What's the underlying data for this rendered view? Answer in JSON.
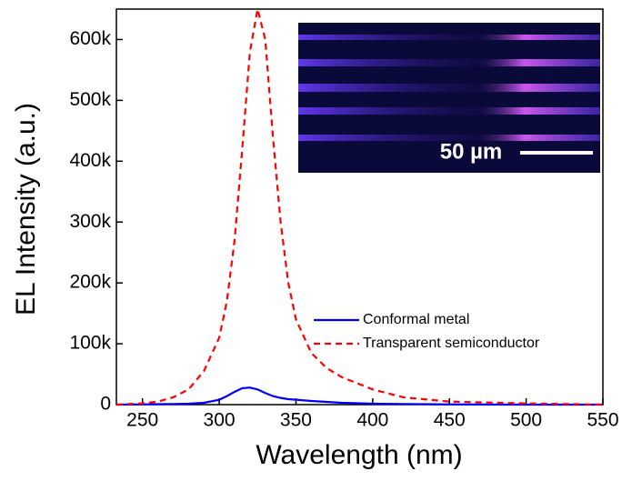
{
  "chart_data": {
    "type": "line",
    "xlabel": "Wavelength (nm)",
    "ylabel": "EL Intensity (a.u.)",
    "x": [
      233,
      250,
      260,
      270,
      280,
      290,
      300,
      305,
      310,
      315,
      320,
      325,
      330,
      335,
      340,
      345,
      350,
      360,
      370,
      380,
      400,
      420,
      450,
      500,
      550
    ],
    "series": [
      {
        "name": "Conformal metal",
        "color": "#0000ff",
        "dashed": false,
        "values": [
          0,
          500,
          700,
          1000,
          1500,
          3000,
          8000,
          14000,
          21000,
          27000,
          28000,
          25000,
          19000,
          14000,
          11000,
          9000,
          8000,
          6000,
          4500,
          3000,
          1500,
          1000,
          500,
          0,
          0
        ]
      },
      {
        "name": "Transparent semiconductor",
        "color": "#ff0000",
        "dashed": true,
        "values": [
          0,
          2000,
          5000,
          12000,
          25000,
          55000,
          110000,
          170000,
          270000,
          420000,
          580000,
          650000,
          600000,
          440000,
          300000,
          200000,
          140000,
          85000,
          60000,
          45000,
          25000,
          12000,
          5000,
          2000,
          0
        ]
      }
    ],
    "xlim": [
      233,
      550
    ],
    "xticks": [
      250,
      300,
      350,
      400,
      450,
      500,
      550
    ],
    "ylim": [
      0,
      650000
    ],
    "yticks": [
      0,
      {
        "value": 100000,
        "label": "100k"
      },
      {
        "value": 200000,
        "label": "200k"
      },
      {
        "value": 300000,
        "label": "300k"
      },
      {
        "value": 400000,
        "label": "400k"
      },
      {
        "value": 500000,
        "label": "500k"
      },
      {
        "value": 600000,
        "label": "600k"
      }
    ],
    "annotations": [
      "50 µm"
    ]
  }
}
